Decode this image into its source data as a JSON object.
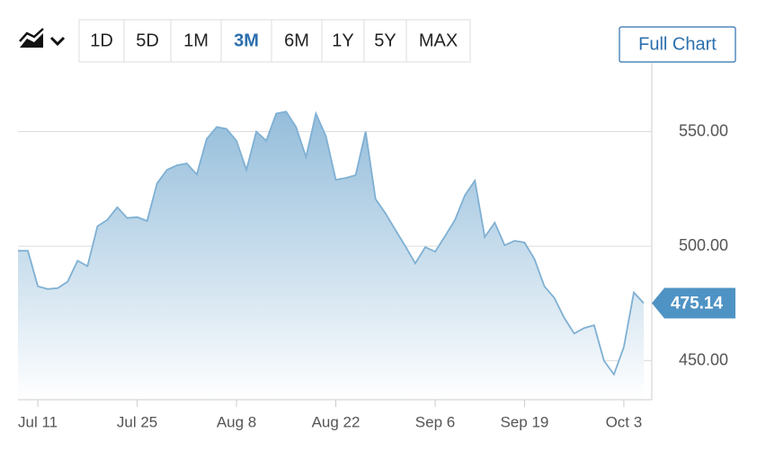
{
  "range_buttons": [
    "1D",
    "5D",
    "1M",
    "3M",
    "6M",
    "1Y",
    "5Y",
    "MAX"
  ],
  "active_range": "3M",
  "full_chart": "Full Chart",
  "chart_data": {
    "type": "area",
    "categories": [
      null,
      null,
      "Jul 11",
      null,
      null,
      null,
      null,
      null,
      null,
      null,
      null,
      null,
      "Jul 25",
      null,
      null,
      null,
      null,
      null,
      null,
      null,
      null,
      null,
      "Aug 8",
      null,
      null,
      null,
      null,
      null,
      null,
      null,
      null,
      null,
      "Aug 22",
      null,
      null,
      null,
      null,
      null,
      null,
      null,
      null,
      null,
      "Sep 6",
      null,
      null,
      null,
      null,
      null,
      null,
      null,
      null,
      "Sep 19",
      null,
      null,
      null,
      null,
      null,
      null,
      null,
      null,
      null,
      "Oct 3",
      null,
      null
    ],
    "values": [
      498,
      498,
      482.5,
      481.3,
      481.7,
      484.5,
      493.7,
      491.3,
      508.7,
      511.5,
      517,
      512.3,
      512.7,
      511,
      527.4,
      533.3,
      535.3,
      536.1,
      531.3,
      546.8,
      552,
      551.2,
      546,
      533.3,
      550,
      546,
      557.9,
      558.7,
      552,
      538.9,
      557.9,
      548,
      529,
      529.8,
      531,
      550,
      520.6,
      514.3,
      507.1,
      500,
      492.5,
      499.6,
      497.6,
      504.4,
      511.5,
      522.2,
      528.6,
      504,
      510.3,
      500.4,
      502.4,
      501.6,
      494.4,
      482.5,
      477.4,
      468.7,
      461.9,
      464.3,
      465.5,
      450,
      444,
      456,
      479.8,
      475.14
    ],
    "current_value_label": "475.14",
    "color": "#7fb0d3",
    "ylim": [
      433,
      580
    ],
    "yticks": [
      {
        "value": 450,
        "label": "450.00"
      },
      {
        "value": 500,
        "label": "500.00"
      },
      {
        "value": 550,
        "label": "550.00"
      }
    ],
    "grid": true
  }
}
